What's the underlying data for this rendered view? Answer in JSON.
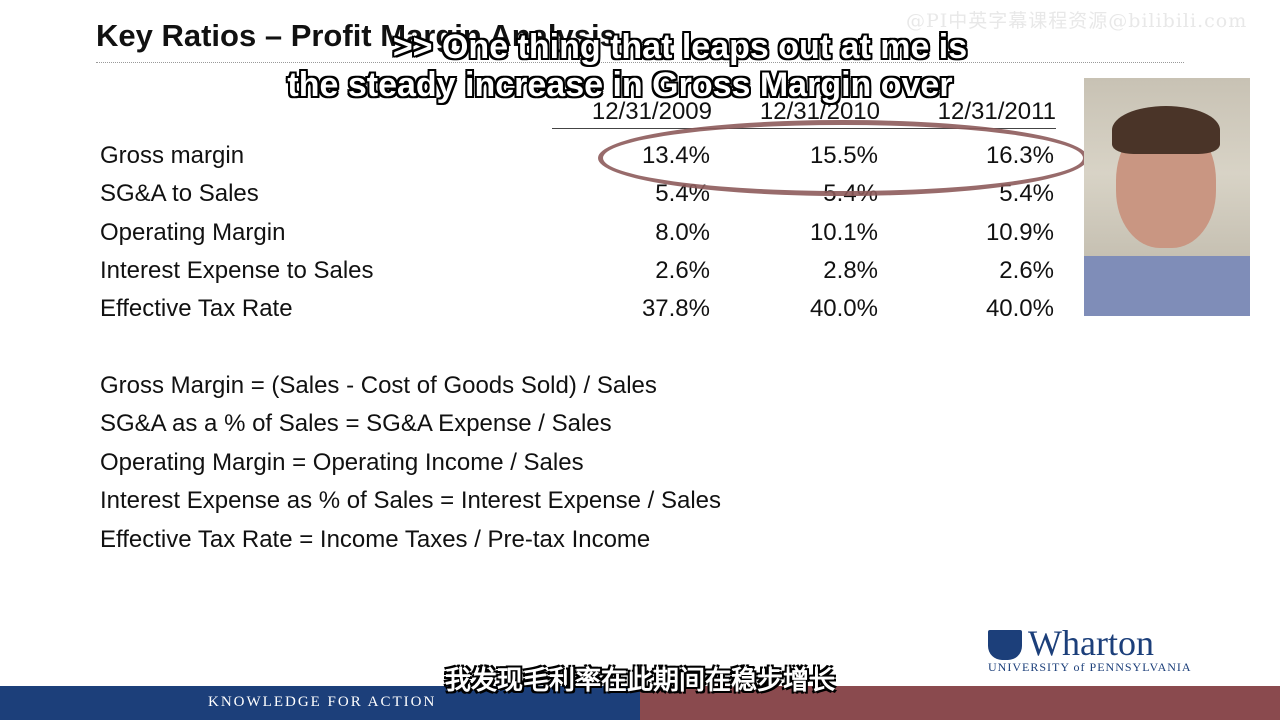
{
  "slide": {
    "title": "Key Ratios – Profit Margin Analysis",
    "watermark": "@PI中英字幕课程资源@bilibili.com"
  },
  "caption": {
    "line1": ">> One thing that leaps out at me is",
    "line2": "the steady increase in Gross Margin over"
  },
  "table": {
    "headers": [
      "12/31/2009",
      "12/31/2010",
      "12/31/2011"
    ],
    "rows": [
      {
        "label": "Gross margin",
        "values": [
          "13.4%",
          "15.5%",
          "16.3%"
        ]
      },
      {
        "label": "SG&A to Sales",
        "values": [
          "5.4%",
          "5.4%",
          "5.4%"
        ]
      },
      {
        "label": "Operating Margin",
        "values": [
          "8.0%",
          "10.1%",
          "10.9%"
        ]
      },
      {
        "label": "Interest Expense to Sales",
        "values": [
          "2.6%",
          "2.8%",
          "2.6%"
        ]
      },
      {
        "label": "Effective Tax Rate",
        "values": [
          "37.8%",
          "40.0%",
          "40.0%"
        ]
      }
    ]
  },
  "formulas": [
    "Gross Margin = (Sales - Cost of Goods Sold) / Sales",
    "SG&A as a % of Sales = SG&A Expense / Sales",
    "Operating Margin = Operating Income / Sales",
    "Interest Expense as % of Sales = Interest Expense / Sales",
    "Effective Tax Rate = Income Taxes / Pre-tax Income"
  ],
  "logo": {
    "name": "Wharton",
    "subtitle": "UNIVERSITY of PENNSYLVANIA"
  },
  "footer": {
    "tagline": "KNOWLEDGE FOR ACTION"
  },
  "subtitle_cn": "我发现毛利率在此期间在稳步增长",
  "colors": {
    "navy": "#1c3f7a",
    "maroon": "#8a4a4e",
    "highlight": "#8d5b5b"
  }
}
